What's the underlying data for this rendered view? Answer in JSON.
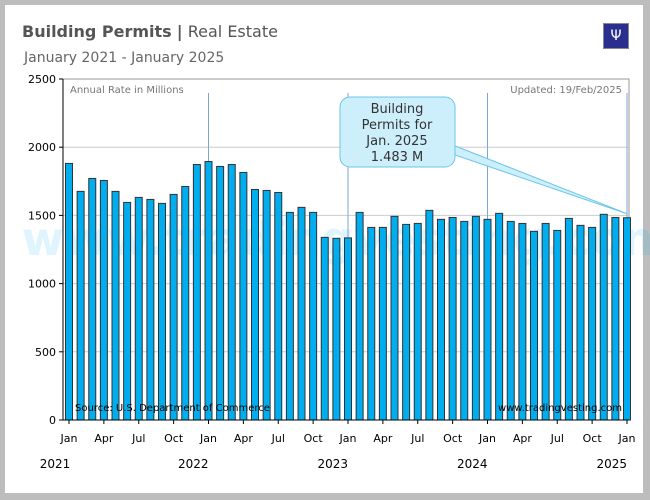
{
  "header": {
    "title_bold": "Building Permits",
    "title_sep": "|",
    "title_rest": "Real Estate",
    "subtitle": "January 2021 - January 2025",
    "logo": "tradingvesting-logo"
  },
  "notes": {
    "units": "Annual Rate in Millions",
    "updated": "Updated: 19/Feb/2025",
    "source": "Source: U.S. Department of Commerce",
    "website": "www.tradingvesting.com"
  },
  "callout": {
    "lines": [
      "Building",
      "Permits for",
      "Jan. 2025",
      "1.483 M"
    ]
  },
  "colors": {
    "bar": "#00aeef",
    "bar_stroke": "#333333",
    "marker_line": "#7fa6d8",
    "callout_fill": "#cdeffb"
  },
  "chart_data": {
    "type": "bar",
    "ylim": [
      0,
      2500
    ],
    "yticks": [
      0,
      500,
      1000,
      1500,
      2000,
      2500
    ],
    "grid": true,
    "month_labels": [
      "Jan",
      "Apr",
      "Jul",
      "Oct"
    ],
    "year_labels": [
      "2021",
      "2022",
      "2023",
      "2024",
      "2025"
    ],
    "categories": [
      "Jan 2021",
      "Feb 2021",
      "Mar 2021",
      "Apr 2021",
      "May 2021",
      "Jun 2021",
      "Jul 2021",
      "Aug 2021",
      "Sep 2021",
      "Oct 2021",
      "Nov 2021",
      "Dec 2021",
      "Jan 2022",
      "Feb 2022",
      "Mar 2022",
      "Apr 2022",
      "May 2022",
      "Jun 2022",
      "Jul 2022",
      "Aug 2022",
      "Sep 2022",
      "Oct 2022",
      "Nov 2022",
      "Dec 2022",
      "Jan 2023",
      "Feb 2023",
      "Mar 2023",
      "Apr 2023",
      "May 2023",
      "Jun 2023",
      "Jul 2023",
      "Aug 2023",
      "Sep 2023",
      "Oct 2023",
      "Nov 2023",
      "Dec 2023",
      "Jan 2024",
      "Feb 2024",
      "Mar 2024",
      "Apr 2024",
      "May 2024",
      "Jun 2024",
      "Jul 2024",
      "Aug 2024",
      "Sep 2024",
      "Oct 2024",
      "Nov 2024",
      "Dec 2024",
      "Jan 2025"
    ],
    "values": [
      1881,
      1676,
      1771,
      1756,
      1676,
      1595,
      1632,
      1617,
      1588,
      1654,
      1712,
      1873,
      1895,
      1859,
      1873,
      1815,
      1690,
      1683,
      1668,
      1522,
      1559,
      1522,
      1339,
      1332,
      1335,
      1522,
      1412,
      1412,
      1493,
      1434,
      1441,
      1537,
      1471,
      1485,
      1456,
      1493,
      1471,
      1515,
      1456,
      1441,
      1383,
      1441,
      1390,
      1478,
      1427,
      1412,
      1508,
      1485,
      1483
    ]
  }
}
